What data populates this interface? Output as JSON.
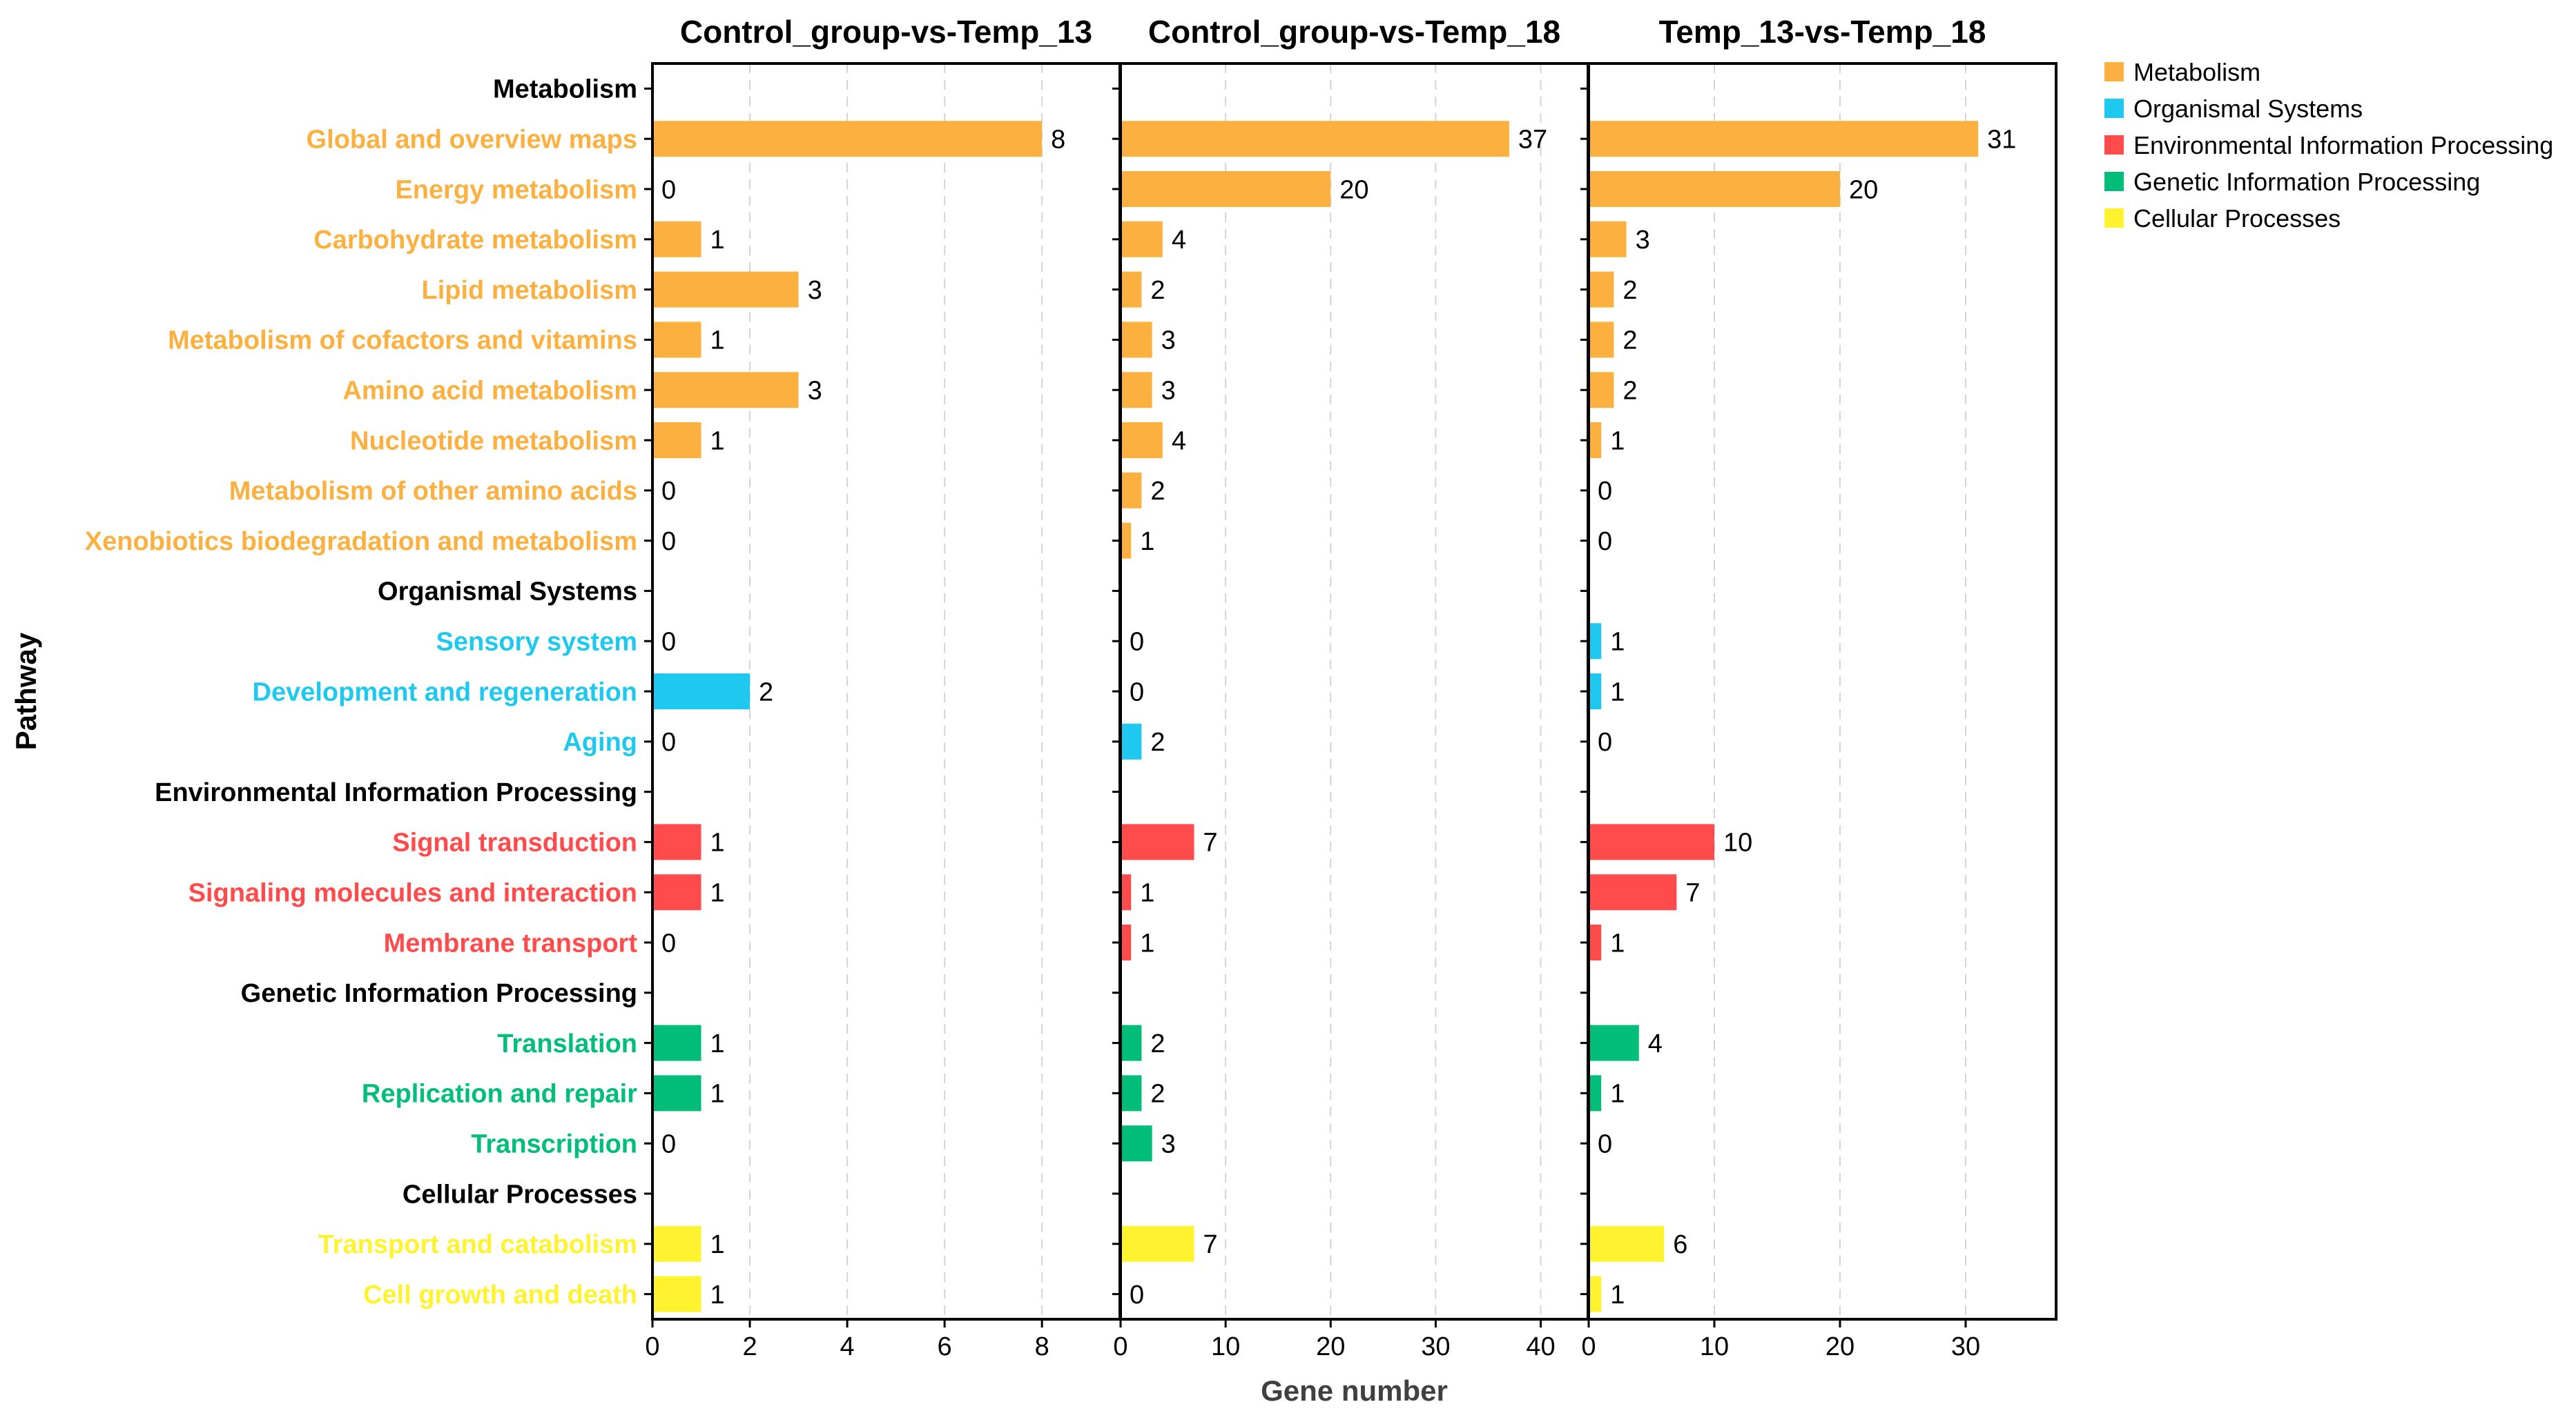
{
  "chart_data": {
    "type": "bar",
    "orientation": "horizontal",
    "ylabel": "Pathway",
    "xlabel": "Gene number",
    "grid": "vertical dashed",
    "legend_position": "top-right",
    "categories": [
      {
        "label": "Metabolism",
        "group": "Metabolism",
        "is_header": true
      },
      {
        "label": "Global and overview maps",
        "group": "Metabolism"
      },
      {
        "label": "Energy metabolism",
        "group": "Metabolism"
      },
      {
        "label": "Carbohydrate metabolism",
        "group": "Metabolism"
      },
      {
        "label": "Lipid metabolism",
        "group": "Metabolism"
      },
      {
        "label": "Metabolism of cofactors and vitamins",
        "group": "Metabolism"
      },
      {
        "label": "Amino acid metabolism",
        "group": "Metabolism"
      },
      {
        "label": "Nucleotide metabolism",
        "group": "Metabolism"
      },
      {
        "label": "Metabolism of other amino acids",
        "group": "Metabolism"
      },
      {
        "label": "Xenobiotics biodegradation and metabolism",
        "group": "Metabolism"
      },
      {
        "label": "Organismal Systems",
        "group": "Organismal Systems",
        "is_header": true
      },
      {
        "label": "Sensory system",
        "group": "Organismal Systems"
      },
      {
        "label": "Development and regeneration",
        "group": "Organismal Systems"
      },
      {
        "label": "Aging",
        "group": "Organismal Systems"
      },
      {
        "label": "Environmental Information Processing",
        "group": "Environmental Information Processing",
        "is_header": true
      },
      {
        "label": "Signal transduction",
        "group": "Environmental Information Processing"
      },
      {
        "label": "Signaling molecules and interaction",
        "group": "Environmental Information Processing"
      },
      {
        "label": "Membrane transport",
        "group": "Environmental Information Processing"
      },
      {
        "label": "Genetic Information Processing",
        "group": "Genetic Information Processing",
        "is_header": true
      },
      {
        "label": "Translation",
        "group": "Genetic Information Processing"
      },
      {
        "label": "Replication and repair",
        "group": "Genetic Information Processing"
      },
      {
        "label": "Transcription",
        "group": "Genetic Information Processing"
      },
      {
        "label": "Cellular Processes",
        "group": "Cellular Processes",
        "is_header": true
      },
      {
        "label": "Transport and catabolism",
        "group": "Cellular Processes"
      },
      {
        "label": "Cell growth and death",
        "group": "Cellular Processes"
      }
    ],
    "groups": [
      {
        "name": "Metabolism",
        "color": "#FBB040"
      },
      {
        "name": "Organismal Systems",
        "color": "#1FC8EE"
      },
      {
        "name": "Environmental Information Processing",
        "color": "#FF4B4B"
      },
      {
        "name": "Genetic Information Processing",
        "color": "#00BD7A"
      },
      {
        "name": "Cellular Processes",
        "color": "#FFF22E"
      }
    ],
    "panels": [
      {
        "title": "Control_group-vs-Temp_13",
        "xlim": [
          0,
          9.6
        ],
        "ticks": [
          0,
          2,
          4,
          6,
          8
        ],
        "values": [
          null,
          8,
          0,
          1,
          3,
          1,
          3,
          1,
          0,
          0,
          null,
          0,
          2,
          0,
          null,
          1,
          1,
          0,
          null,
          1,
          1,
          0,
          null,
          1,
          1
        ]
      },
      {
        "title": "Control_group-vs-Temp_18",
        "xlim": [
          0,
          44.5
        ],
        "ticks": [
          0,
          10,
          20,
          30,
          40
        ],
        "values": [
          null,
          37,
          20,
          4,
          2,
          3,
          3,
          4,
          2,
          1,
          null,
          0,
          0,
          2,
          null,
          7,
          1,
          1,
          null,
          2,
          2,
          3,
          null,
          7,
          0
        ]
      },
      {
        "title": "Temp_13-vs-Temp_18",
        "xlim": [
          0,
          37.2
        ],
        "ticks": [
          0,
          10,
          20,
          30
        ],
        "values": [
          null,
          31,
          20,
          3,
          2,
          2,
          2,
          1,
          0,
          0,
          null,
          1,
          1,
          0,
          null,
          10,
          7,
          1,
          null,
          4,
          1,
          0,
          null,
          6,
          1
        ]
      }
    ]
  }
}
